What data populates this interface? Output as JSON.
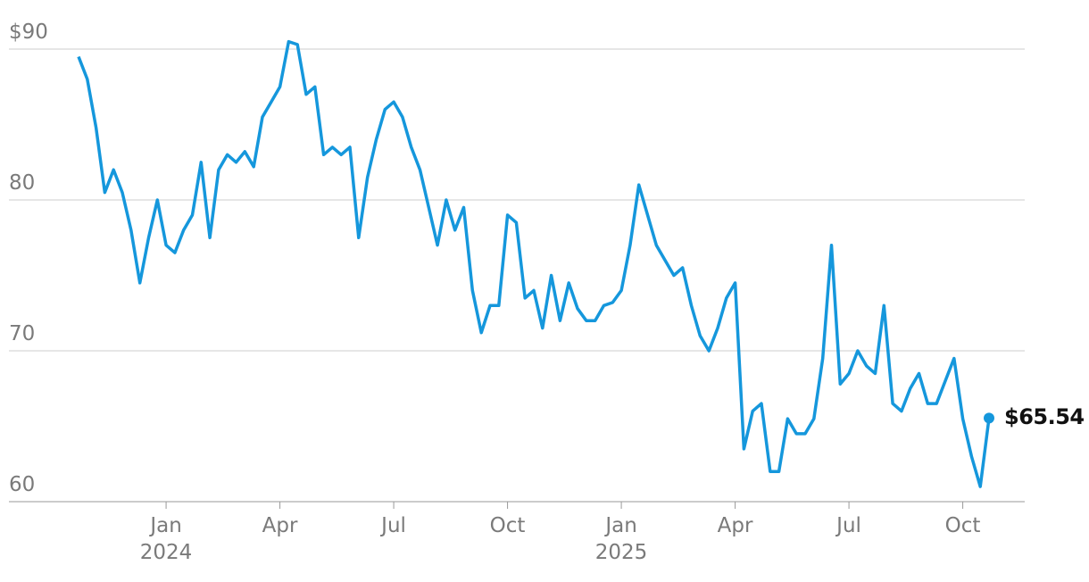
{
  "chart_data": {
    "type": "line",
    "categories": [
      null,
      null,
      null,
      null,
      null,
      null,
      null,
      null,
      null,
      null,
      "Jan\n2024",
      null,
      null,
      null,
      null,
      null,
      null,
      null,
      null,
      null,
      null,
      null,
      null,
      "Apr",
      null,
      null,
      null,
      null,
      null,
      null,
      null,
      null,
      null,
      null,
      null,
      null,
      "Jul",
      null,
      null,
      null,
      null,
      null,
      null,
      null,
      null,
      null,
      null,
      null,
      null,
      "Oct",
      null,
      null,
      null,
      null,
      null,
      null,
      null,
      null,
      null,
      null,
      null,
      null,
      "Jan\n2025",
      null,
      null,
      null,
      null,
      null,
      null,
      null,
      null,
      null,
      null,
      null,
      null,
      "Apr",
      null,
      null,
      null,
      null,
      null,
      null,
      null,
      null,
      null,
      null,
      null,
      null,
      "Jul",
      null,
      null,
      null,
      null,
      null,
      null,
      null,
      null,
      null,
      null,
      null,
      null,
      "Oct",
      null,
      null,
      null
    ],
    "series": [
      {
        "color": "#1597dc",
        "values": [
          89.5,
          88,
          84.8,
          80.5,
          82,
          80.5,
          78,
          74.5,
          77.5,
          80,
          77,
          76.5,
          78,
          79,
          82.5,
          77.5,
          82,
          83,
          82.5,
          83.2,
          82.2,
          85.5,
          86.5,
          87.5,
          90.5,
          90.3,
          87,
          87.5,
          83,
          83.5,
          83,
          83.5,
          77.5,
          81.5,
          84,
          86,
          86.5,
          85.5,
          83.5,
          82,
          79.5,
          77,
          80,
          78,
          79.5,
          74,
          71.2,
          73,
          73,
          79,
          78.5,
          73.5,
          74,
          71.5,
          75,
          72,
          74.5,
          72.8,
          72,
          72,
          73,
          73.2,
          74,
          77,
          81,
          79,
          77,
          76,
          75,
          75.5,
          73,
          71,
          70,
          71.5,
          73.5,
          74.5,
          63.5,
          66,
          66.5,
          62,
          62,
          65.5,
          64.5,
          64.5,
          65.5,
          69.5,
          77,
          67.8,
          68.5,
          70,
          69,
          68.5,
          73,
          66.5,
          66,
          67.5,
          68.5,
          66.5,
          66.5,
          68,
          69.5,
          65.5,
          63,
          61,
          65.54
        ],
        "value_labels": [
          null,
          null,
          null,
          null,
          null,
          null,
          null,
          null,
          null,
          null,
          null,
          null,
          null,
          null,
          null,
          null,
          null,
          null,
          null,
          null,
          null,
          null,
          null,
          null,
          null,
          null,
          null,
          null,
          null,
          null,
          null,
          null,
          null,
          null,
          null,
          null,
          null,
          null,
          null,
          null,
          null,
          null,
          null,
          null,
          null,
          null,
          null,
          null,
          null,
          null,
          null,
          null,
          null,
          null,
          null,
          null,
          null,
          null,
          null,
          null,
          null,
          null,
          null,
          null,
          null,
          null,
          null,
          null,
          null,
          null,
          null,
          null,
          null,
          null,
          null,
          null,
          null,
          null,
          null,
          null,
          null,
          null,
          null,
          null,
          null,
          null,
          null,
          null,
          null,
          null,
          null,
          null,
          null,
          null,
          null,
          null,
          null,
          null,
          null,
          null,
          null,
          null,
          null,
          null,
          "$65.54"
        ]
      }
    ],
    "ylim": [
      60,
      90
    ],
    "yticks": [
      60,
      70,
      80,
      {
        "value": 90,
        "label": "$90"
      }
    ],
    "grid": true
  }
}
